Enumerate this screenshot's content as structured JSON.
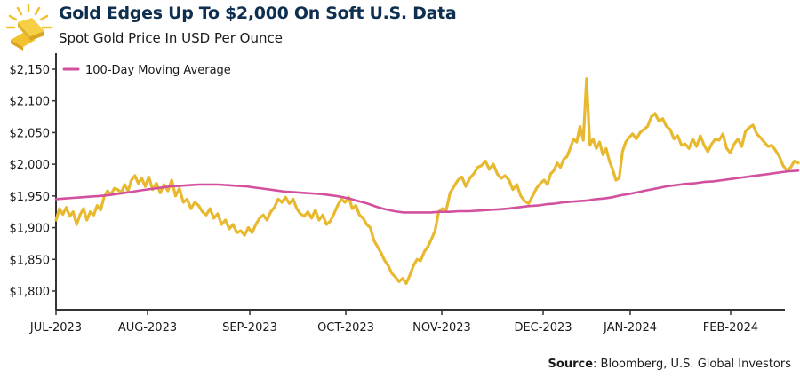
{
  "header": {
    "title": "Gold Edges Up To $2,000 On Soft U.S. Data",
    "subtitle": "Spot Gold Price In USD Per Ounce",
    "icon": "gold-bars-icon"
  },
  "source": {
    "label": "Source",
    "text": ": Bloomberg, U.S. Global Investors"
  },
  "colors": {
    "gold_series": "#e8b92e",
    "moving_average": "#d2509e",
    "title": "#0e2f4f",
    "axis": "#333333",
    "icon": "#f2c12e"
  },
  "chart_data": {
    "type": "line",
    "title": "Gold Edges Up To $2,000 On Soft U.S. Data",
    "subtitle": "Spot Gold Price In USD Per Ounce",
    "xlabel": "",
    "ylabel": "",
    "ylim": [
      1780,
      2160
    ],
    "yticks": [
      1800,
      1850,
      1900,
      1950,
      2000,
      2050,
      2100,
      2150
    ],
    "ytick_labels": [
      "$1,800",
      "$1,850",
      "$1,900",
      "$1,950",
      "$2,000",
      "$2,050",
      "$2,100",
      "$2,150"
    ],
    "x_range_days": [
      0,
      237
    ],
    "xticks": [
      {
        "day": 0,
        "label": "JUL-2023"
      },
      {
        "day": 31,
        "label": "AUG-2023"
      },
      {
        "day": 62,
        "label": "SEP-2023"
      },
      {
        "day": 92,
        "label": "OCT-2023"
      },
      {
        "day": 123,
        "label": "NOV-2023"
      },
      {
        "day": 153,
        "label": "DEC-2023"
      },
      {
        "day": 184,
        "label": "JAN-2024"
      },
      {
        "day": 215,
        "label": "FEB-2024"
      }
    ],
    "grid": false,
    "legend": {
      "position": "top-left",
      "entries": [
        "100-Day Moving Average"
      ]
    },
    "series": [
      {
        "name": "Spot Gold",
        "in_legend": false,
        "day_step": 1.4,
        "values": [
          1912,
          1930,
          1921,
          1932,
          1918,
          1925,
          1905,
          1920,
          1930,
          1912,
          1925,
          1920,
          1935,
          1928,
          1948,
          1958,
          1952,
          1962,
          1960,
          1955,
          1968,
          1958,
          1975,
          1982,
          1970,
          1978,
          1965,
          1980,
          1960,
          1970,
          1955,
          1968,
          1958,
          1975,
          1950,
          1962,
          1940,
          1945,
          1930,
          1940,
          1935,
          1925,
          1920,
          1930,
          1915,
          1922,
          1905,
          1912,
          1898,
          1905,
          1892,
          1895,
          1888,
          1900,
          1892,
          1905,
          1915,
          1920,
          1912,
          1925,
          1932,
          1945,
          1940,
          1948,
          1938,
          1945,
          1930,
          1922,
          1918,
          1925,
          1915,
          1928,
          1912,
          1920,
          1905,
          1910,
          1922,
          1935,
          1945,
          1940,
          1948,
          1930,
          1935,
          1920,
          1915,
          1905,
          1900,
          1880,
          1870,
          1860,
          1848,
          1840,
          1828,
          1822,
          1815,
          1820,
          1812,
          1825,
          1840,
          1850,
          1848,
          1862,
          1870,
          1882,
          1895,
          1925,
          1930,
          1928,
          1955,
          1965,
          1975,
          1980,
          1965,
          1978,
          1985,
          1995,
          1998,
          2005,
          1992,
          2000,
          1985,
          1978,
          1982,
          1975,
          1960,
          1968,
          1950,
          1942,
          1938,
          1950,
          1962,
          1970,
          1975,
          1968,
          1985,
          1990,
          2002,
          1995,
          2008,
          2012,
          2025,
          2040,
          2035,
          2060,
          2038,
          2135,
          2030,
          2040,
          2025,
          2035,
          2015,
          2025,
          2005,
          1992,
          1975,
          1978,
          2020,
          2035,
          2042,
          2048,
          2040,
          2050,
          2055,
          2060,
          2075,
          2080,
          2068,
          2072,
          2060,
          2055,
          2040,
          2045,
          2030,
          2032,
          2025,
          2040,
          2028,
          2045,
          2030,
          2020,
          2032,
          2040,
          2038,
          2048,
          2025,
          2018,
          2032,
          2040,
          2028,
          2052,
          2058,
          2062,
          2048,
          2042,
          2035,
          2028,
          2030,
          2022,
          2012,
          1998,
          1990,
          1995,
          2005,
          2002
        ]
      },
      {
        "name": "100-Day Moving Average",
        "in_legend": true,
        "day_step": 1.4,
        "values": [
          1945,
          1946,
          1947,
          1948,
          1949,
          1950,
          1951,
          1953,
          1955,
          1957,
          1959,
          1961,
          1963,
          1965,
          1966,
          1967,
          1968,
          1968,
          1968,
          1967,
          1966,
          1965,
          1963,
          1961,
          1959,
          1957,
          1956,
          1955,
          1954,
          1953,
          1951,
          1949,
          1946,
          1942,
          1938,
          1933,
          1929,
          1926,
          1924,
          1924,
          1924,
          1924,
          1925,
          1925,
          1926,
          1926,
          1927,
          1928,
          1929,
          1930,
          1932,
          1934,
          1935,
          1937,
          1938,
          1940,
          1941,
          1942,
          1943,
          1945,
          1946,
          1948,
          1951,
          1953,
          1956,
          1959,
          1962,
          1965,
          1967,
          1969,
          1970,
          1972,
          1973,
          1975,
          1977,
          1979,
          1981,
          1983,
          1985,
          1987,
          1989,
          1990
        ]
      }
    ]
  }
}
